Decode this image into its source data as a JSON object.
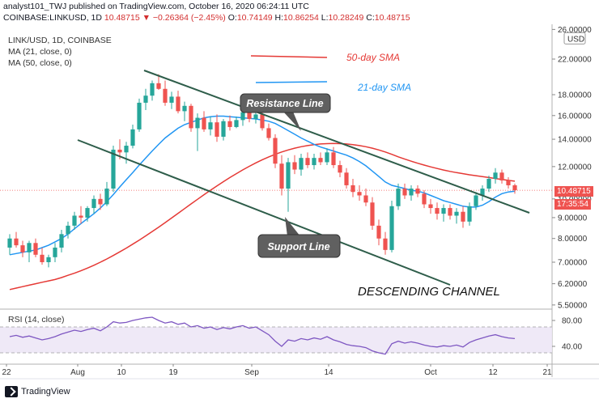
{
  "header": {
    "line1": "analyst101_TWJ published on TradingView.com, October 16, 2020 06:24:11 UTC",
    "symbol": "COINBASE:LINKUSD, 1D",
    "last": "10.48715",
    "change": "▼ −0.26364 (−2.45%)",
    "o_label": "O:",
    "o_val": "10.74149",
    "h_label": "H:",
    "h_val": "10.86254",
    "l_label": "L:",
    "l_val": "10.28249",
    "c_label": "C:",
    "c_val": "10.48715"
  },
  "legend": {
    "title": "LINK/USD, 1D, COINBASE",
    "ma21": "MA (21, close, 0)",
    "ma50": "MA (50, close, 0)",
    "rsi": "RSI (14, close)"
  },
  "labels": {
    "sma50": "50-day SMA",
    "sma21": "21-day SMA",
    "resistance": "Resistance Line",
    "support": "Support Line",
    "channel": "DESCENDING CHANNEL",
    "usd": "USD",
    "price_tag": "10.48715",
    "time_tag": "17:35:54",
    "logo": "TradingView"
  },
  "colors": {
    "up": "#26a69a",
    "down": "#ef5350",
    "ma21": "#2196f3",
    "ma50": "#e53935",
    "rsi": "#7e57c2",
    "channel": "#2e5d4a"
  },
  "chart_data": {
    "type": "candlestick",
    "price_axis": {
      "ticks": [
        26,
        22,
        18,
        16,
        14,
        12,
        10,
        9,
        8,
        7,
        6.2,
        5.5
      ],
      "tick_labels": [
        "26.00000",
        "22.00000",
        "18.00000",
        "16.00000",
        "14.00000",
        "12.00000",
        "10.00000",
        "9.00000",
        "8.00000",
        "7.00000",
        "6.20000",
        "5.50000"
      ],
      "scale": "log"
    },
    "x_axis": {
      "tick_labels": [
        "22",
        "Aug",
        "10",
        "19",
        "Sep",
        "14",
        "Oct",
        "12",
        "21"
      ]
    },
    "rsi_axis": {
      "ticks": [
        80,
        40
      ],
      "tick_labels": [
        "80.00",
        "40.00"
      ],
      "band": [
        30,
        70
      ]
    },
    "candles": [
      [
        7.6,
        8.2,
        7.3,
        8.0
      ],
      [
        8.0,
        8.3,
        7.6,
        7.7
      ],
      [
        7.7,
        7.9,
        7.2,
        7.4
      ],
      [
        7.4,
        7.9,
        7.0,
        7.8
      ],
      [
        7.8,
        8.0,
        7.2,
        7.3
      ],
      [
        7.3,
        7.6,
        6.9,
        7.0
      ],
      [
        7.0,
        7.3,
        6.8,
        7.2
      ],
      [
        7.2,
        7.8,
        7.0,
        7.6
      ],
      [
        7.6,
        8.4,
        7.4,
        8.2
      ],
      [
        8.2,
        8.8,
        8.0,
        8.6
      ],
      [
        8.6,
        9.3,
        8.4,
        9.1
      ],
      [
        9.1,
        9.6,
        8.7,
        9.0
      ],
      [
        9.0,
        9.6,
        8.8,
        9.5
      ],
      [
        9.5,
        10.2,
        9.2,
        10.0
      ],
      [
        10.0,
        10.3,
        9.4,
        9.7
      ],
      [
        9.7,
        11.0,
        9.6,
        10.6
      ],
      [
        10.6,
        13.5,
        10.4,
        13.2
      ],
      [
        13.2,
        14.0,
        12.5,
        13.0
      ],
      [
        13.0,
        13.8,
        12.2,
        13.5
      ],
      [
        13.5,
        15.2,
        13.3,
        14.8
      ],
      [
        14.8,
        17.6,
        14.6,
        17.2
      ],
      [
        17.2,
        18.6,
        16.5,
        17.9
      ],
      [
        17.9,
        19.5,
        17.4,
        19.2
      ],
      [
        19.2,
        20.2,
        18.5,
        18.6
      ],
      [
        18.6,
        19.5,
        16.9,
        17.2
      ],
      [
        17.2,
        18.3,
        16.6,
        17.8
      ],
      [
        17.8,
        18.4,
        16.2,
        16.4
      ],
      [
        16.4,
        17.3,
        15.5,
        16.9
      ],
      [
        16.9,
        17.1,
        14.6,
        14.9
      ],
      [
        14.9,
        16.2,
        13.1,
        15.8
      ],
      [
        15.8,
        16.4,
        14.6,
        14.8
      ],
      [
        14.8,
        15.9,
        14.3,
        15.4
      ],
      [
        15.4,
        16.1,
        13.8,
        14.2
      ],
      [
        14.2,
        15.7,
        13.9,
        15.5
      ],
      [
        15.5,
        16.0,
        14.7,
        15.0
      ],
      [
        15.0,
        15.9,
        14.9,
        15.6
      ],
      [
        15.6,
        16.8,
        15.1,
        16.3
      ],
      [
        16.3,
        17.0,
        15.4,
        15.7
      ],
      [
        15.7,
        16.6,
        15.3,
        16.1
      ],
      [
        16.1,
        16.5,
        14.7,
        14.9
      ],
      [
        14.9,
        15.3,
        13.9,
        14.1
      ],
      [
        14.1,
        14.4,
        11.9,
        12.2
      ],
      [
        12.2,
        12.8,
        10.2,
        10.6
      ],
      [
        10.6,
        12.6,
        9.3,
        12.3
      ],
      [
        12.3,
        12.8,
        11.5,
        11.8
      ],
      [
        11.8,
        12.9,
        11.4,
        12.6
      ],
      [
        12.6,
        13.0,
        11.9,
        12.1
      ],
      [
        12.1,
        12.9,
        11.8,
        12.6
      ],
      [
        12.6,
        13.0,
        12.1,
        12.3
      ],
      [
        12.3,
        13.3,
        12.1,
        13.0
      ],
      [
        13.0,
        13.4,
        11.9,
        12.1
      ],
      [
        12.1,
        12.4,
        11.3,
        11.6
      ],
      [
        11.6,
        11.9,
        10.6,
        10.8
      ],
      [
        10.8,
        11.2,
        10.1,
        10.4
      ],
      [
        10.4,
        10.8,
        9.9,
        10.2
      ],
      [
        10.2,
        10.6,
        9.6,
        9.8
      ],
      [
        9.8,
        10.1,
        8.4,
        8.6
      ],
      [
        8.6,
        8.9,
        7.7,
        8.0
      ],
      [
        8.0,
        8.3,
        7.3,
        7.5
      ],
      [
        7.5,
        9.9,
        7.4,
        9.6
      ],
      [
        9.6,
        10.9,
        9.4,
        10.6
      ],
      [
        10.6,
        10.9,
        10.0,
        10.2
      ],
      [
        10.2,
        10.8,
        9.9,
        10.6
      ],
      [
        10.6,
        10.8,
        10.1,
        10.3
      ],
      [
        10.3,
        10.5,
        9.5,
        9.7
      ],
      [
        9.7,
        10.0,
        9.2,
        9.5
      ],
      [
        9.5,
        9.8,
        8.9,
        9.2
      ],
      [
        9.2,
        9.7,
        8.8,
        9.5
      ],
      [
        9.5,
        9.7,
        8.9,
        9.1
      ],
      [
        9.1,
        9.5,
        8.7,
        9.3
      ],
      [
        9.3,
        9.6,
        8.5,
        8.8
      ],
      [
        8.8,
        9.8,
        8.6,
        9.6
      ],
      [
        9.6,
        10.4,
        9.4,
        10.2
      ],
      [
        10.2,
        10.8,
        9.9,
        10.6
      ],
      [
        10.6,
        11.4,
        10.4,
        11.2
      ],
      [
        11.2,
        11.9,
        10.9,
        11.6
      ],
      [
        11.6,
        11.8,
        10.9,
        11.1
      ],
      [
        11.1,
        11.3,
        10.6,
        10.8
      ],
      [
        10.8,
        10.9,
        10.3,
        10.5
      ]
    ],
    "ma21": [
      7.3,
      7.35,
      7.4,
      7.45,
      7.5,
      7.6,
      7.7,
      7.85,
      8.0,
      8.2,
      8.45,
      8.7,
      8.95,
      9.2,
      9.5,
      9.85,
      10.25,
      10.7,
      11.15,
      11.6,
      12.1,
      12.6,
      13.1,
      13.6,
      14.1,
      14.5,
      14.9,
      15.2,
      15.4,
      15.6,
      15.8,
      15.9,
      15.95,
      15.95,
      15.9,
      15.85,
      15.8,
      15.75,
      15.7,
      15.6,
      15.5,
      15.3,
      15.0,
      14.7,
      14.4,
      14.1,
      13.85,
      13.6,
      13.4,
      13.25,
      13.1,
      12.95,
      12.8,
      12.6,
      12.35,
      12.05,
      11.7,
      11.35,
      11.0,
      10.8,
      10.7,
      10.6,
      10.5,
      10.45,
      10.35,
      10.2,
      10.05,
      9.9,
      9.8,
      9.7,
      9.6,
      9.55,
      9.55,
      9.65,
      9.85,
      10.1,
      10.3,
      10.4,
      10.45
    ],
    "ma50": [
      6.0,
      6.05,
      6.1,
      6.15,
      6.2,
      6.25,
      6.3,
      6.35,
      6.42,
      6.5,
      6.58,
      6.67,
      6.77,
      6.88,
      7.0,
      7.13,
      7.27,
      7.42,
      7.58,
      7.75,
      7.93,
      8.12,
      8.32,
      8.53,
      8.75,
      8.98,
      9.22,
      9.47,
      9.72,
      9.98,
      10.24,
      10.5,
      10.76,
      11.02,
      11.28,
      11.53,
      11.78,
      12.02,
      12.25,
      12.47,
      12.67,
      12.86,
      13.03,
      13.18,
      13.31,
      13.42,
      13.51,
      13.58,
      13.63,
      13.66,
      13.67,
      13.66,
      13.63,
      13.58,
      13.51,
      13.42,
      13.31,
      13.18,
      13.03,
      12.86,
      12.68,
      12.52,
      12.37,
      12.23,
      12.1,
      11.98,
      11.87,
      11.77,
      11.68,
      11.6,
      11.53,
      11.46,
      11.4,
      11.34,
      11.28,
      11.22,
      11.16,
      11.1,
      11.05
    ],
    "rsi": [
      55,
      57,
      54,
      56,
      53,
      50,
      52,
      55,
      59,
      62,
      65,
      63,
      66,
      68,
      64,
      70,
      78,
      76,
      77,
      80,
      82,
      84,
      85,
      80,
      76,
      78,
      74,
      76,
      70,
      72,
      68,
      70,
      66,
      69,
      67,
      70,
      72,
      68,
      70,
      64,
      58,
      48,
      40,
      50,
      48,
      52,
      50,
      53,
      51,
      55,
      50,
      47,
      43,
      41,
      40,
      38,
      33,
      30,
      28,
      44,
      48,
      45,
      47,
      45,
      42,
      40,
      39,
      41,
      40,
      42,
      39,
      46,
      50,
      53,
      56,
      58,
      55,
      53,
      52
    ],
    "annotations": [
      "50-day SMA",
      "21-day SMA",
      "Resistance Line",
      "Support Line",
      "DESCENDING CHANNEL"
    ]
  }
}
